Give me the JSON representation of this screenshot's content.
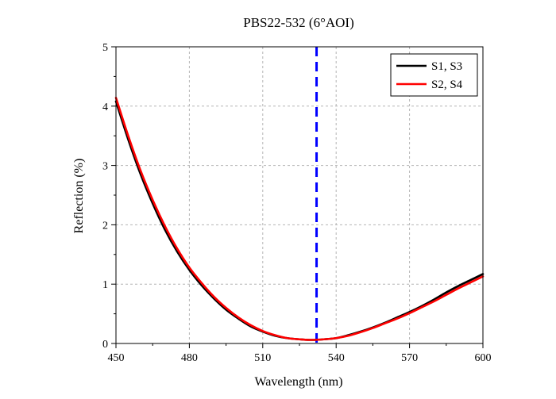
{
  "chart_data": {
    "type": "line",
    "title": "PBS22-532 (6°AOI)",
    "xlabel": "Wavelength (nm)",
    "ylabel": "Reflection (%)",
    "xlim": [
      450,
      600
    ],
    "ylim": [
      0,
      5
    ],
    "xticks": [
      450,
      480,
      510,
      540,
      570,
      600
    ],
    "yticks": [
      0,
      1,
      2,
      3,
      4,
      5
    ],
    "grid": true,
    "legend_position": "top-right",
    "reference_line": {
      "x": 532,
      "color": "#0000ff",
      "style": "dashed"
    },
    "series": [
      {
        "name": "S1, S3",
        "color": "#000000",
        "x": [
          450,
          455,
          460,
          465,
          470,
          475,
          480,
          485,
          490,
          495,
          500,
          505,
          510,
          515,
          520,
          525,
          530,
          535,
          540,
          545,
          550,
          555,
          560,
          565,
          570,
          575,
          580,
          585,
          590,
          595,
          600
        ],
        "y": [
          4.08,
          3.44,
          2.86,
          2.36,
          1.92,
          1.55,
          1.24,
          0.98,
          0.76,
          0.57,
          0.42,
          0.29,
          0.2,
          0.13,
          0.09,
          0.07,
          0.06,
          0.07,
          0.09,
          0.14,
          0.2,
          0.27,
          0.35,
          0.44,
          0.53,
          0.63,
          0.74,
          0.86,
          0.97,
          1.07,
          1.17
        ]
      },
      {
        "name": "S2, S4",
        "color": "#ff0000",
        "x": [
          450,
          455,
          460,
          465,
          470,
          475,
          480,
          485,
          490,
          495,
          500,
          505,
          510,
          515,
          520,
          525,
          530,
          535,
          540,
          545,
          550,
          555,
          560,
          565,
          570,
          575,
          580,
          585,
          590,
          595,
          600
        ],
        "y": [
          4.14,
          3.5,
          2.92,
          2.42,
          1.98,
          1.6,
          1.28,
          1.02,
          0.79,
          0.6,
          0.44,
          0.31,
          0.21,
          0.14,
          0.09,
          0.07,
          0.06,
          0.07,
          0.09,
          0.13,
          0.19,
          0.26,
          0.34,
          0.42,
          0.51,
          0.61,
          0.71,
          0.82,
          0.93,
          1.03,
          1.13
        ]
      }
    ]
  }
}
